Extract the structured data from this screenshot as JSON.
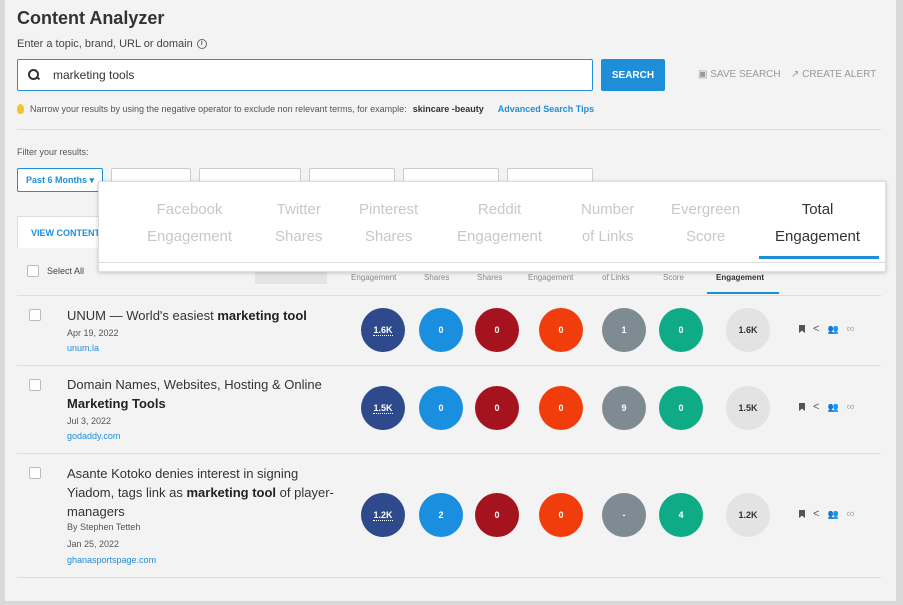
{
  "header": {
    "title": "Content Analyzer",
    "subtitle": "Enter a topic, brand, URL or domain",
    "info_glyph": "i"
  },
  "search": {
    "value": "marketing tools",
    "button_label": "SEARCH",
    "save_search": "SAVE SEARCH",
    "create_alert": "CREATE ALERT"
  },
  "tip": {
    "text": "Narrow your results by using the negative operator to exclude non relevant terms, for example:",
    "example": "skincare -beauty",
    "link": "Advanced Search Tips"
  },
  "filters": {
    "label": "Filter your results:",
    "selected": "Past 6 Months"
  },
  "tabs": {
    "view_content": "VIEW CONTENT"
  },
  "table": {
    "select_all": "Select All",
    "col_headers": [
      "Engagement",
      "Shares",
      "Shares",
      "Engagement",
      "of Links",
      "Score",
      "Engagement"
    ]
  },
  "column_overlay": {
    "columns": [
      {
        "line1": "Facebook",
        "line2": "Engagement"
      },
      {
        "line1": "Twitter",
        "line2": "Shares"
      },
      {
        "line1": "Pinterest",
        "line2": "Shares"
      },
      {
        "line1": "Reddit",
        "line2": "Engagement"
      },
      {
        "line1": "Number",
        "line2": "of Links"
      },
      {
        "line1": "Evergreen",
        "line2": "Score"
      },
      {
        "line1": "Total",
        "line2": "Engagement"
      }
    ]
  },
  "colors": {
    "facebook": "#2e4a8c",
    "twitter": "#1a8fe0",
    "pinterest": "#a5141e",
    "reddit": "#f13d0b",
    "links": "#7e8b93",
    "evergreen": "#0fab86",
    "accent": "#1f8ed8"
  },
  "results": [
    {
      "title_plain": "UNUM — World's easiest ",
      "title_bold": "marketing tool",
      "title_tail": "",
      "author": "",
      "date": "Apr 19, 2022",
      "domain": "unum.la",
      "facebook": "1.6K",
      "twitter": "0",
      "pinterest": "0",
      "reddit": "0",
      "links": "1",
      "evergreen": "0",
      "total": "1.6K"
    },
    {
      "title_plain": "Domain Names, Websites, Hosting & Online ",
      "title_bold": "Marketing Tools",
      "title_tail": "",
      "author": "",
      "date": "Jul 3, 2022",
      "domain": "godaddy.com",
      "facebook": "1.5K",
      "twitter": "0",
      "pinterest": "0",
      "reddit": "0",
      "links": "9",
      "evergreen": "0",
      "total": "1.5K"
    },
    {
      "title_plain": "Asante Kotoko denies interest in signing Yiadom, tags link as ",
      "title_bold": "marketing tool",
      "title_tail": " of player-managers",
      "author": "By Stephen Tetteh",
      "date": "Jan 25, 2022",
      "domain": "ghanasportspage.com",
      "facebook": "1.2K",
      "twitter": "2",
      "pinterest": "0",
      "reddit": "0",
      "links": "-",
      "evergreen": "4",
      "total": "1.2K"
    }
  ]
}
